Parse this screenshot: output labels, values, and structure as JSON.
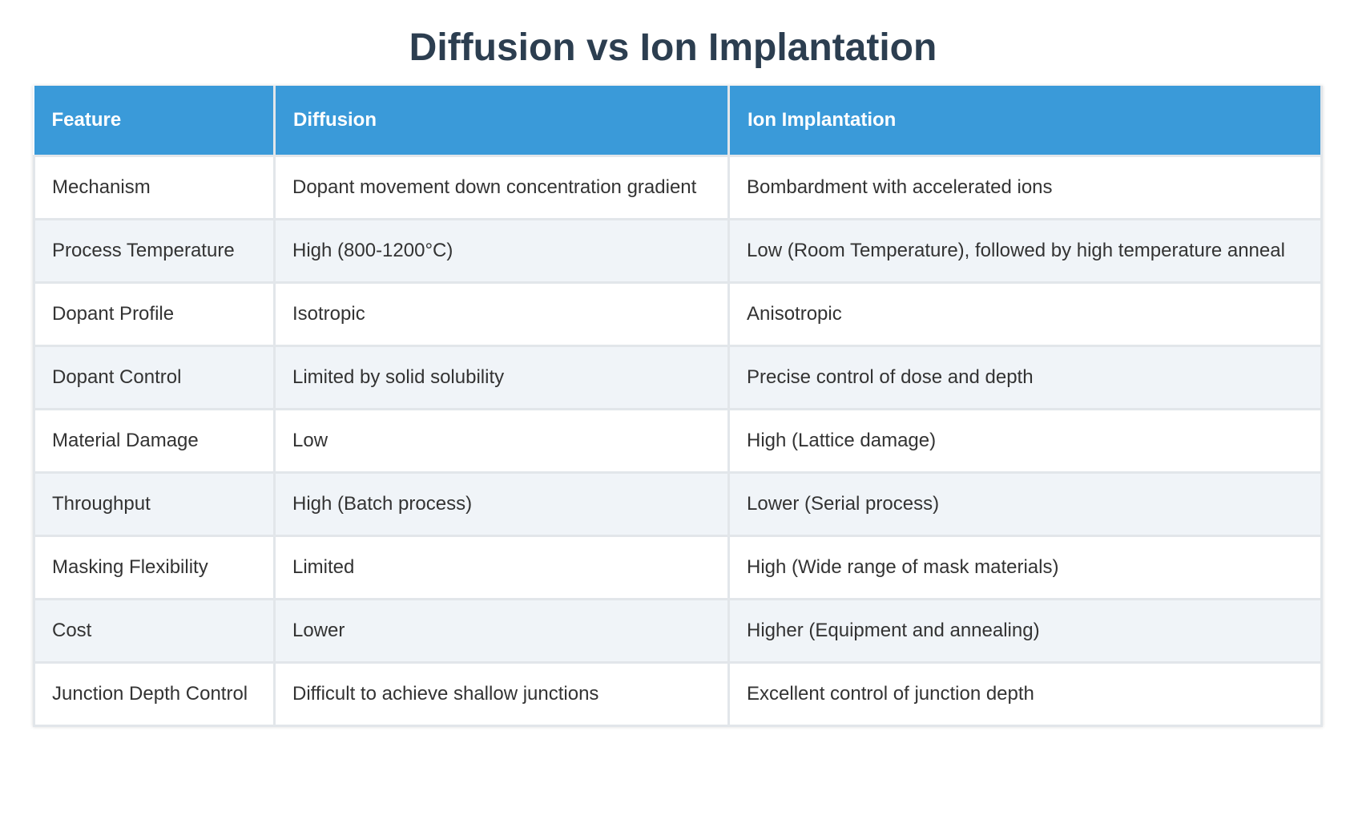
{
  "header": {
    "title": "Diffusion vs Ion Implantation"
  },
  "table": {
    "columns": [
      "Feature",
      "Diffusion",
      "Ion Implantation"
    ],
    "rows": [
      [
        "Mechanism",
        "Dopant movement down concentration gradient",
        "Bombardment with accelerated ions"
      ],
      [
        "Process Temperature",
        "High (800-1200°C)",
        "Low (Room Temperature), followed by high temperature anneal"
      ],
      [
        "Dopant Profile",
        "Isotropic",
        "Anisotropic"
      ],
      [
        "Dopant Control",
        "Limited by solid solubility",
        "Precise control of dose and depth"
      ],
      [
        "Material Damage",
        "Low",
        "High (Lattice damage)"
      ],
      [
        "Throughput",
        "High (Batch process)",
        "Lower (Serial process)"
      ],
      [
        "Masking Flexibility",
        "Limited",
        "High (Wide range of mask materials)"
      ],
      [
        "Cost",
        "Lower",
        "Higher (Equipment and annealing)"
      ],
      [
        "Junction Depth Control",
        "Difficult to achieve shallow junctions",
        "Excellent control of junction depth"
      ]
    ]
  }
}
